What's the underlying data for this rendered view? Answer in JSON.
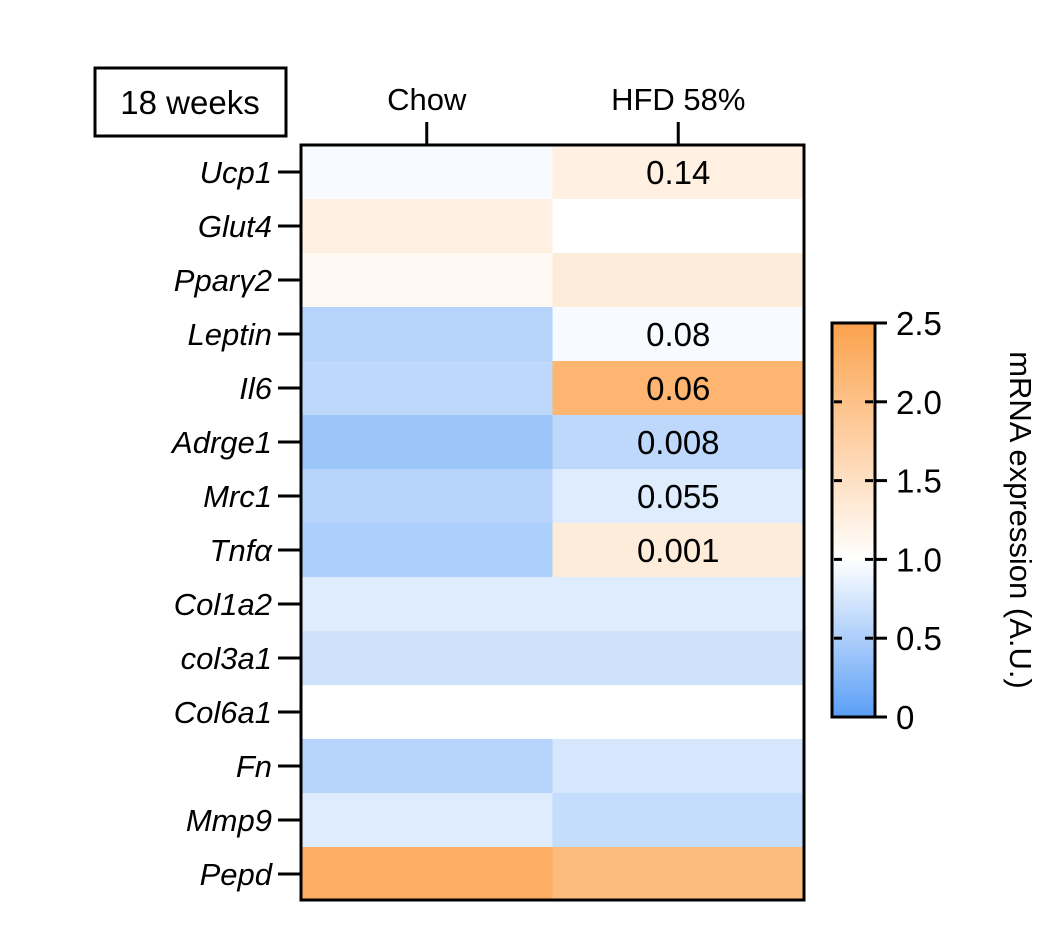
{
  "chart_data": {
    "type": "heatmap",
    "title": "18 weeks",
    "columns": [
      "Chow",
      "HFD 58%"
    ],
    "rows": [
      "Ucp1",
      "Glut4",
      "Pparγ2",
      "Leptin",
      "Il6",
      "Adrge1",
      "Mrc1",
      "Tnfα",
      "Col1a2",
      "col3a1",
      "Col6a1",
      "Fn",
      "Mmp9",
      "Pepd"
    ],
    "values": [
      [
        0.95,
        1.25
      ],
      [
        1.25,
        1.0
      ],
      [
        1.1,
        1.3
      ],
      [
        0.55,
        0.95
      ],
      [
        0.6,
        2.2
      ],
      [
        0.4,
        0.6
      ],
      [
        0.55,
        0.8
      ],
      [
        0.5,
        1.3
      ],
      [
        0.8,
        0.8
      ],
      [
        0.7,
        0.7
      ],
      [
        1.0,
        1.0
      ],
      [
        0.55,
        0.75
      ],
      [
        0.8,
        0.65
      ],
      [
        2.3,
        2.1
      ]
    ],
    "annotations": [
      {
        "row": "Ucp1",
        "column": "HFD 58%",
        "text": "0.14"
      },
      {
        "row": "Leptin",
        "column": "HFD 58%",
        "text": "0.08"
      },
      {
        "row": "Il6",
        "column": "HFD 58%",
        "text": "0.06"
      },
      {
        "row": "Adrge1",
        "column": "HFD 58%",
        "text": "0.008"
      },
      {
        "row": "Mrc1",
        "column": "HFD 58%",
        "text": "0.055"
      },
      {
        "row": "Tnfα",
        "column": "HFD 58%",
        "text": "0.001"
      }
    ],
    "colorbar": {
      "label": "mRNA expression (A.U.)",
      "range": [
        0,
        2.5
      ],
      "ticks": [
        "0",
        "0.5",
        "1.0",
        "1.5",
        "2.0",
        "2.5"
      ],
      "tick_values": [
        0,
        0.5,
        1.0,
        1.5,
        2.0,
        2.5
      ],
      "colors": {
        "low": "#5a9ef6",
        "mid": "#ffffff",
        "high": "#fca24d"
      }
    }
  }
}
